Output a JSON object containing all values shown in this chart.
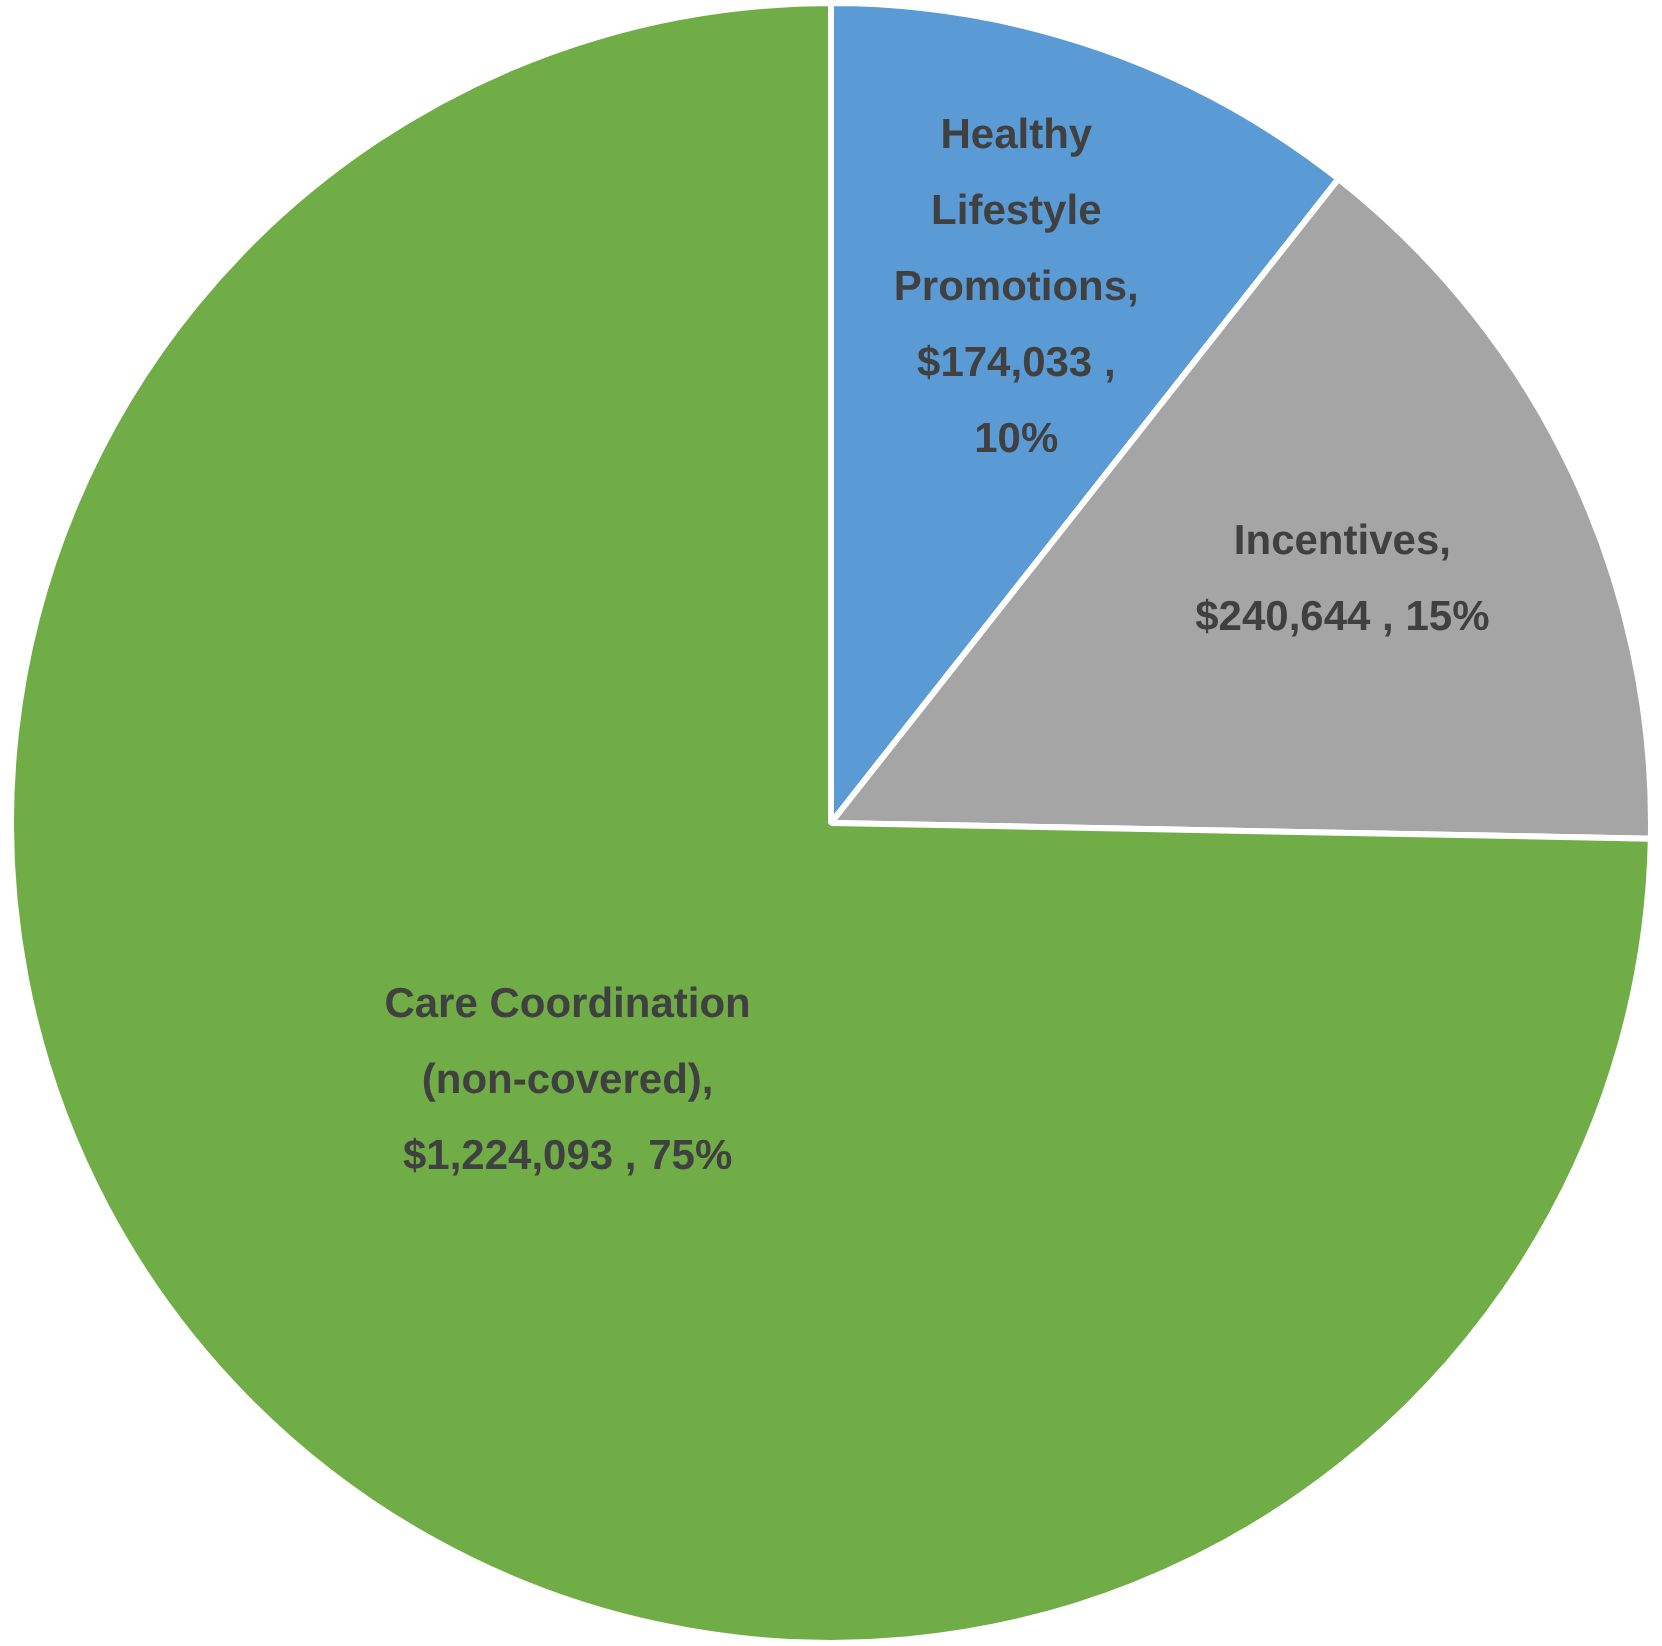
{
  "chart_data": {
    "type": "pie",
    "categories": [
      "Healthy Lifestyle Promotions",
      "Incentives",
      "Care Coordination (non-covered)"
    ],
    "values": [
      174033,
      240644,
      1224093
    ],
    "colors": [
      "#5b9bd5",
      "#a5a5a5",
      "#70ad47"
    ],
    "value_labels": [
      ", $174,033 , 10%",
      ", $240,644 , 15%",
      ", $1,224,093 , 75%"
    ],
    "legend": false
  }
}
